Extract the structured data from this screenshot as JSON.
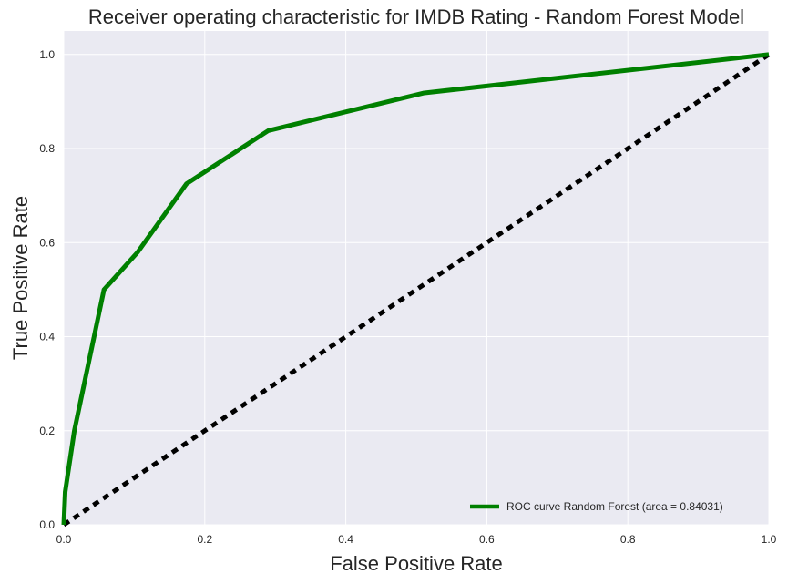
{
  "chart_data": {
    "type": "line",
    "title": "Receiver operating characteristic for IMDB Rating - Random Forest Model",
    "xlabel": "False Positive Rate",
    "ylabel": "True Positive Rate",
    "xlim": [
      0.0,
      1.0
    ],
    "ylim": [
      0.0,
      1.05
    ],
    "xticks": [
      "0.0",
      "0.2",
      "0.4",
      "0.6",
      "0.8",
      "1.0"
    ],
    "yticks": [
      "0.0",
      "0.2",
      "0.4",
      "0.6",
      "0.8",
      "1.0"
    ],
    "grid": true,
    "background_color": "#EAEAF2",
    "legend_position": "lower-right",
    "series": [
      {
        "name": "ROC curve Random Forest (area = 0.84031)",
        "color": "#008000",
        "style": "solid",
        "x": [
          0.0,
          0.002,
          0.006,
          0.015,
          0.057,
          0.105,
          0.174,
          0.29,
          0.51,
          1.0
        ],
        "y": [
          0.0,
          0.07,
          0.11,
          0.2,
          0.5,
          0.58,
          0.725,
          0.838,
          0.918,
          1.0
        ]
      },
      {
        "name": "",
        "color": "#000000",
        "style": "dashed",
        "x": [
          0.0,
          1.0
        ],
        "y": [
          0.0,
          1.0
        ]
      }
    ]
  }
}
